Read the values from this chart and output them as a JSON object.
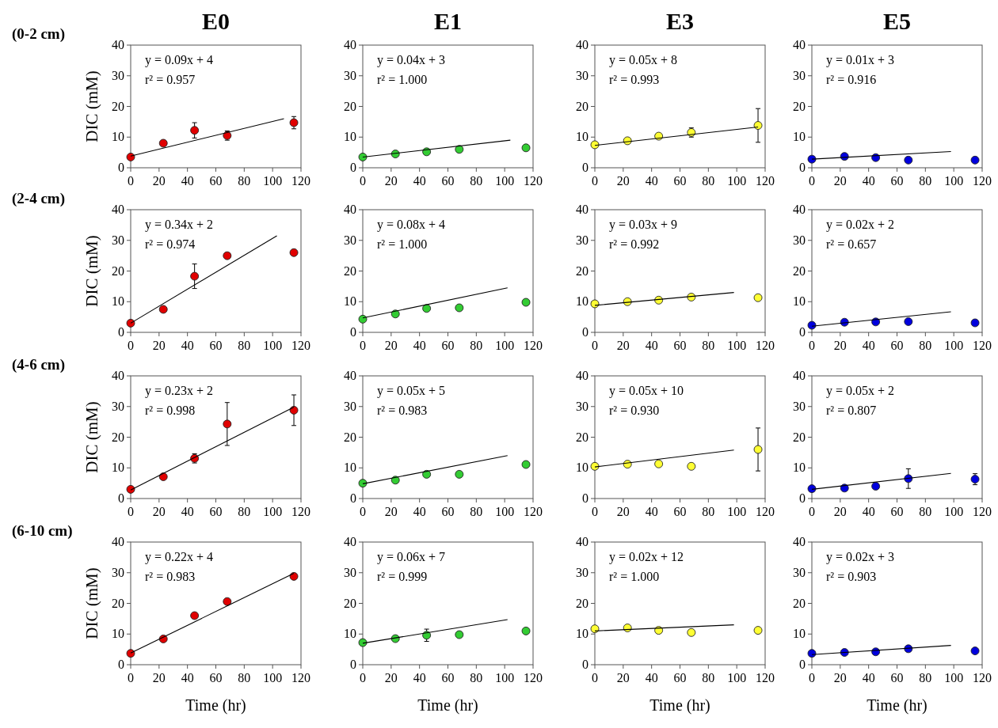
{
  "chart_data": [
    {
      "type": "scatter",
      "title": "E0",
      "subtitle": "(0-2 cm)",
      "ylabel": "DIC (mM)",
      "annotations": [
        "y = 0.09x + 4",
        "r² = 0.957"
      ],
      "xlim": [
        0,
        120
      ],
      "xticks": [
        0,
        20,
        40,
        60,
        80,
        100,
        120
      ],
      "ylim": [
        0,
        40
      ],
      "yticks": [
        0,
        10,
        20,
        30,
        40
      ],
      "series": [
        {
          "type": "scatter",
          "marker": "circle",
          "color": "#e00000",
          "x": [
            0,
            23,
            45,
            68,
            115
          ],
          "values": [
            3.5,
            8,
            12.2,
            10.5,
            14.7
          ],
          "errors": [
            null,
            null,
            2.5,
            1.5,
            2
          ]
        },
        {
          "type": "line",
          "color": "#000000",
          "x": [
            0,
            108
          ],
          "values": [
            3.8,
            16
          ]
        }
      ]
    },
    {
      "type": "scatter",
      "title": "E1",
      "annotations": [
        "y = 0.04x + 3",
        "r² = 1.000"
      ],
      "xlim": [
        0,
        120
      ],
      "xticks": [
        0,
        20,
        40,
        60,
        80,
        100,
        120
      ],
      "ylim": [
        0,
        40
      ],
      "yticks": [
        0,
        10,
        20,
        30,
        40
      ],
      "series": [
        {
          "type": "scatter",
          "marker": "circle",
          "color": "#33cc33",
          "x": [
            0,
            23,
            45,
            68,
            115
          ],
          "values": [
            3.5,
            4.5,
            5.2,
            6,
            6.5
          ]
        },
        {
          "type": "line",
          "color": "#000000",
          "x": [
            0,
            104
          ],
          "values": [
            3.5,
            9
          ]
        }
      ]
    },
    {
      "type": "scatter",
      "title": "E3",
      "annotations": [
        "y = 0.05x + 8",
        "r² = 0.993"
      ],
      "xlim": [
        0,
        120
      ],
      "xticks": [
        0,
        20,
        40,
        60,
        80,
        100,
        120
      ],
      "ylim": [
        0,
        40
      ],
      "yticks": [
        0,
        10,
        20,
        30,
        40
      ],
      "series": [
        {
          "type": "scatter",
          "marker": "circle",
          "color": "#ffff33",
          "x": [
            0,
            23,
            45,
            68,
            115
          ],
          "values": [
            7.5,
            8.8,
            10.3,
            11.5,
            13.8
          ],
          "errors": [
            null,
            null,
            null,
            1.5,
            5.5
          ]
        },
        {
          "type": "line",
          "color": "#000000",
          "x": [
            0,
            115
          ],
          "values": [
            7.3,
            13.3
          ]
        }
      ]
    },
    {
      "type": "scatter",
      "title": "E5",
      "annotations": [
        "y = 0.01x + 3",
        "r² = 0.916"
      ],
      "xlim": [
        0,
        120
      ],
      "xticks": [
        0,
        20,
        40,
        60,
        80,
        100,
        120
      ],
      "ylim": [
        0,
        40
      ],
      "yticks": [
        0,
        10,
        20,
        30,
        40
      ],
      "series": [
        {
          "type": "scatter",
          "marker": "circle",
          "color": "#0000dd",
          "x": [
            0,
            23,
            45,
            68,
            115
          ],
          "values": [
            2.8,
            3.7,
            3.3,
            2.5,
            2.5
          ]
        },
        {
          "type": "line",
          "color": "#000000",
          "x": [
            0,
            98
          ],
          "values": [
            2.8,
            5.3
          ]
        }
      ]
    },
    {
      "type": "scatter",
      "subtitle": "(2-4 cm)",
      "ylabel": "DIC (mM)",
      "annotations": [
        "y = 0.34x + 2",
        "r² = 0.974"
      ],
      "xlim": [
        0,
        120
      ],
      "xticks": [
        0,
        20,
        40,
        60,
        80,
        100,
        120
      ],
      "ylim": [
        0,
        40
      ],
      "yticks": [
        0,
        10,
        20,
        30,
        40
      ],
      "series": [
        {
          "type": "scatter",
          "marker": "circle",
          "color": "#e00000",
          "x": [
            0,
            23,
            45,
            68,
            115
          ],
          "values": [
            3,
            7.5,
            18.3,
            25,
            26
          ],
          "errors": [
            null,
            null,
            4,
            null,
            null
          ]
        },
        {
          "type": "line",
          "color": "#000000",
          "x": [
            0,
            103
          ],
          "values": [
            3,
            31.5
          ]
        }
      ]
    },
    {
      "type": "scatter",
      "annotations": [
        "y = 0.08x + 4",
        "r² = 1.000"
      ],
      "xlim": [
        0,
        120
      ],
      "xticks": [
        0,
        20,
        40,
        60,
        80,
        100,
        120
      ],
      "ylim": [
        0,
        40
      ],
      "yticks": [
        0,
        10,
        20,
        30,
        40
      ],
      "series": [
        {
          "type": "scatter",
          "marker": "circle",
          "color": "#33cc33",
          "x": [
            0,
            23,
            45,
            68,
            115
          ],
          "values": [
            4.3,
            6,
            7.8,
            8,
            9.8
          ]
        },
        {
          "type": "line",
          "color": "#000000",
          "x": [
            0,
            102
          ],
          "values": [
            4.7,
            14.5
          ]
        }
      ]
    },
    {
      "type": "scatter",
      "annotations": [
        "y = 0.03x + 9",
        "r² = 0.992"
      ],
      "xlim": [
        0,
        120
      ],
      "xticks": [
        0,
        20,
        40,
        60,
        80,
        100,
        120
      ],
      "ylim": [
        0,
        40
      ],
      "yticks": [
        0,
        10,
        20,
        30,
        40
      ],
      "series": [
        {
          "type": "scatter",
          "marker": "circle",
          "color": "#ffff33",
          "x": [
            0,
            23,
            45,
            68,
            115
          ],
          "values": [
            9.3,
            10,
            10.5,
            11.5,
            11.3
          ]
        },
        {
          "type": "line",
          "color": "#000000",
          "x": [
            0,
            98
          ],
          "values": [
            8.8,
            13
          ]
        }
      ]
    },
    {
      "type": "scatter",
      "annotations": [
        "y = 0.02x + 2",
        "r² = 0.657"
      ],
      "xlim": [
        0,
        120
      ],
      "xticks": [
        0,
        20,
        40,
        60,
        80,
        100,
        120
      ],
      "ylim": [
        0,
        40
      ],
      "yticks": [
        0,
        10,
        20,
        30,
        40
      ],
      "series": [
        {
          "type": "scatter",
          "marker": "circle",
          "color": "#0000dd",
          "x": [
            0,
            23,
            45,
            68,
            115
          ],
          "values": [
            2.3,
            3.3,
            3.4,
            3.5,
            3.1
          ]
        },
        {
          "type": "line",
          "color": "#000000",
          "x": [
            0,
            98
          ],
          "values": [
            2,
            6.7
          ]
        }
      ]
    },
    {
      "type": "scatter",
      "subtitle": "(4-6 cm)",
      "ylabel": "DIC (mM)",
      "annotations": [
        "y = 0.23x + 2",
        "r² = 0.998"
      ],
      "xlim": [
        0,
        120
      ],
      "xticks": [
        0,
        20,
        40,
        60,
        80,
        100,
        120
      ],
      "ylim": [
        0,
        40
      ],
      "yticks": [
        0,
        10,
        20,
        30,
        40
      ],
      "series": [
        {
          "type": "scatter",
          "marker": "circle",
          "color": "#e00000",
          "x": [
            0,
            23,
            45,
            68,
            115
          ],
          "values": [
            3,
            7.1,
            13.1,
            24.3,
            28.8
          ],
          "errors": [
            null,
            null,
            1.5,
            7,
            5
          ]
        },
        {
          "type": "line",
          "color": "#000000",
          "x": [
            0,
            115
          ],
          "values": [
            2.8,
            29.8
          ]
        }
      ]
    },
    {
      "type": "scatter",
      "annotations": [
        "y = 0.05x + 5",
        "r² = 0.983"
      ],
      "xlim": [
        0,
        120
      ],
      "xticks": [
        0,
        20,
        40,
        60,
        80,
        100,
        120
      ],
      "ylim": [
        0,
        40
      ],
      "yticks": [
        0,
        10,
        20,
        30,
        40
      ],
      "series": [
        {
          "type": "scatter",
          "marker": "circle",
          "color": "#33cc33",
          "x": [
            0,
            23,
            45,
            68,
            115
          ],
          "values": [
            5,
            6,
            7.9,
            7.9,
            11.1
          ]
        },
        {
          "type": "line",
          "color": "#000000",
          "x": [
            0,
            102
          ],
          "values": [
            4.8,
            14
          ]
        }
      ]
    },
    {
      "type": "scatter",
      "annotations": [
        "y = 0.05x + 10",
        "r² = 0.930"
      ],
      "xlim": [
        0,
        120
      ],
      "xticks": [
        0,
        20,
        40,
        60,
        80,
        100,
        120
      ],
      "ylim": [
        0,
        40
      ],
      "yticks": [
        0,
        10,
        20,
        30,
        40
      ],
      "series": [
        {
          "type": "scatter",
          "marker": "circle",
          "color": "#ffff33",
          "x": [
            0,
            23,
            45,
            68,
            115
          ],
          "values": [
            10.5,
            11.2,
            11.3,
            10.5,
            16
          ],
          "errors": [
            null,
            null,
            null,
            null,
            7
          ]
        },
        {
          "type": "line",
          "color": "#000000",
          "x": [
            0,
            98
          ],
          "values": [
            10.3,
            15.8
          ]
        }
      ]
    },
    {
      "type": "scatter",
      "annotations": [
        "y = 0.05x + 2",
        "r² = 0.807"
      ],
      "xlim": [
        0,
        120
      ],
      "xticks": [
        0,
        20,
        40,
        60,
        80,
        100,
        120
      ],
      "ylim": [
        0,
        40
      ],
      "yticks": [
        0,
        10,
        20,
        30,
        40
      ],
      "series": [
        {
          "type": "scatter",
          "marker": "circle",
          "color": "#0000dd",
          "x": [
            0,
            23,
            45,
            68,
            115
          ],
          "values": [
            3.2,
            3.4,
            4,
            6.5,
            6.3
          ],
          "errors": [
            null,
            null,
            null,
            3.2,
            1.8
          ]
        },
        {
          "type": "line",
          "color": "#000000",
          "x": [
            0,
            98
          ],
          "values": [
            3,
            8.2
          ]
        }
      ]
    },
    {
      "type": "scatter",
      "subtitle": "(6-10 cm)",
      "ylabel": "DIC (mM)",
      "xlabel": "Time (hr)",
      "annotations": [
        "y = 0.22x + 4",
        "r² = 0.983"
      ],
      "xlim": [
        0,
        120
      ],
      "xticks": [
        0,
        20,
        40,
        60,
        80,
        100,
        120
      ],
      "ylim": [
        0,
        40
      ],
      "yticks": [
        0,
        10,
        20,
        30,
        40
      ],
      "series": [
        {
          "type": "scatter",
          "marker": "circle",
          "color": "#e00000",
          "x": [
            0,
            23,
            45,
            68,
            115
          ],
          "values": [
            3.7,
            8.4,
            16,
            20.6,
            28.8
          ]
        },
        {
          "type": "line",
          "color": "#000000",
          "x": [
            0,
            115
          ],
          "values": [
            3.8,
            29.8
          ]
        }
      ]
    },
    {
      "type": "scatter",
      "xlabel": "Time (hr)",
      "annotations": [
        "y = 0.06x + 7",
        "r² = 0.999"
      ],
      "xlim": [
        0,
        120
      ],
      "xticks": [
        0,
        20,
        40,
        60,
        80,
        100,
        120
      ],
      "ylim": [
        0,
        40
      ],
      "yticks": [
        0,
        10,
        20,
        30,
        40
      ],
      "series": [
        {
          "type": "scatter",
          "marker": "circle",
          "color": "#33cc33",
          "x": [
            0,
            23,
            45,
            68,
            115
          ],
          "values": [
            7.2,
            8.5,
            9.6,
            9.8,
            11
          ],
          "errors": [
            null,
            null,
            2,
            null,
            null
          ]
        },
        {
          "type": "line",
          "color": "#000000",
          "x": [
            0,
            102
          ],
          "values": [
            7,
            14.7
          ]
        }
      ]
    },
    {
      "type": "scatter",
      "xlabel": "Time (hr)",
      "annotations": [
        "y = 0.02x + 12",
        "r² = 1.000"
      ],
      "xlim": [
        0,
        120
      ],
      "xticks": [
        0,
        20,
        40,
        60,
        80,
        100,
        120
      ],
      "ylim": [
        0,
        40
      ],
      "yticks": [
        0,
        10,
        20,
        30,
        40
      ],
      "series": [
        {
          "type": "scatter",
          "marker": "circle",
          "color": "#ffff33",
          "x": [
            0,
            23,
            45,
            68,
            115
          ],
          "values": [
            11.7,
            12,
            11.2,
            10.5,
            11.2
          ]
        },
        {
          "type": "line",
          "color": "#000000",
          "x": [
            0,
            98
          ],
          "values": [
            11,
            13
          ]
        }
      ]
    },
    {
      "type": "scatter",
      "xlabel": "Time (hr)",
      "annotations": [
        "y = 0.02x + 3",
        "r² = 0.903"
      ],
      "xlim": [
        0,
        120
      ],
      "xticks": [
        0,
        20,
        40,
        60,
        80,
        100,
        120
      ],
      "ylim": [
        0,
        40
      ],
      "yticks": [
        0,
        10,
        20,
        30,
        40
      ],
      "series": [
        {
          "type": "scatter",
          "marker": "circle",
          "color": "#0000dd",
          "x": [
            0,
            23,
            45,
            68,
            115
          ],
          "values": [
            3.7,
            4,
            4.2,
            5.2,
            4.5
          ]
        },
        {
          "type": "line",
          "color": "#000000",
          "x": [
            0,
            98
          ],
          "values": [
            3.3,
            6.3
          ]
        }
      ]
    }
  ]
}
